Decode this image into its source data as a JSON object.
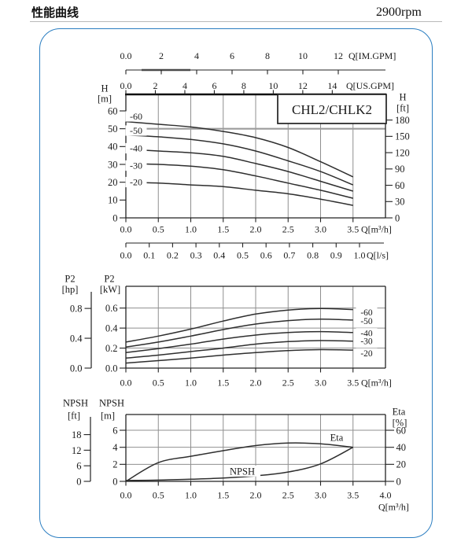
{
  "header": {
    "title": "性能曲线",
    "rpm": "2900rpm"
  },
  "colors": {
    "frame_blue": "#2b7ec1",
    "axis": "#222222",
    "grid": "#8f8f8f",
    "curve": "#2e2e2e",
    "ref_line": "#9b9b9b"
  },
  "chart_data": [
    {
      "name": "head-flow-chart",
      "type": "line",
      "title": "CHL2/CHLK2",
      "x": [
        0,
        0.5,
        1.0,
        1.5,
        2.0,
        2.5,
        3.0,
        3.5
      ],
      "x_axis": {
        "label": "Q[m³/h]",
        "ticks": [
          "0.0",
          "0.5",
          "1.0",
          "1.5",
          "2.0",
          "2.5",
          "3.0",
          "3.5"
        ]
      },
      "aux_axes": {
        "im_gpm": {
          "label": "Q[IM.GPM]",
          "ticks": [
            "0.0",
            "2",
            "4",
            "6",
            "8",
            "10",
            "12"
          ]
        },
        "us_gpm": {
          "label": "Q[US.GPM]",
          "ticks": [
            "0.0",
            "2",
            "4",
            "6",
            "8",
            "10",
            "12",
            "14"
          ]
        },
        "l_s": {
          "label": "Q[l/s]",
          "ticks": [
            "0.0",
            "0.1",
            "0.2",
            "0.3",
            "0.4",
            "0.5",
            "0.6",
            "0.7",
            "0.8",
            "0.9",
            "1.0"
          ]
        }
      },
      "y_left": {
        "label_top": "H",
        "label_unit": "[m]",
        "ticks": [
          "60",
          "50",
          "40",
          "30",
          "20",
          "10",
          "0"
        ],
        "range": [
          0,
          69
        ]
      },
      "y_right": {
        "label_top": "H",
        "label_unit": "[ft]",
        "ticks": [
          "180",
          "150",
          "120",
          "90",
          "60",
          "30",
          "0"
        ]
      },
      "ref_line_m": 50,
      "series": [
        {
          "name": "-60",
          "values": [
            54,
            52.5,
            51,
            48.5,
            45,
            39.5,
            31.5,
            23
          ]
        },
        {
          "name": "-50",
          "values": [
            46.5,
            45.5,
            44,
            41.5,
            37.5,
            32,
            26,
            18.5
          ]
        },
        {
          "name": "-40",
          "values": [
            38.5,
            37.5,
            36.5,
            34.5,
            30.5,
            26,
            20.5,
            15
          ]
        },
        {
          "name": "-30",
          "values": [
            30.5,
            30,
            29,
            27,
            23.5,
            19.5,
            15.5,
            11
          ]
        },
        {
          "name": "-20",
          "values": [
            20,
            19.5,
            18.5,
            17.5,
            15.5,
            13.5,
            10.5,
            7
          ]
        }
      ]
    },
    {
      "name": "power-flow-chart",
      "type": "line",
      "x": [
        0,
        0.5,
        1.0,
        1.5,
        2.0,
        2.5,
        3.0,
        3.5
      ],
      "x_axis": {
        "label": "Q[m³/h]",
        "ticks": [
          "0.0",
          "0.5",
          "1.0",
          "1.5",
          "2.0",
          "2.5",
          "3.0",
          "3.5"
        ]
      },
      "y_hp": {
        "label_top": "P2",
        "label_unit": "[hp]",
        "ticks": [
          "0.8",
          "0.4",
          "0.0"
        ]
      },
      "y_kw": {
        "label_top": "P2",
        "label_unit": "[kW]",
        "ticks": [
          "0.6",
          "0.4",
          "0.2",
          "0.0"
        ],
        "range": [
          0,
          0.8
        ]
      },
      "series": [
        {
          "name": "-60",
          "values": [
            0.26,
            0.32,
            0.39,
            0.47,
            0.54,
            0.58,
            0.595,
            0.585
          ]
        },
        {
          "name": "-50",
          "values": [
            0.21,
            0.26,
            0.32,
            0.385,
            0.44,
            0.475,
            0.49,
            0.48
          ]
        },
        {
          "name": "-40",
          "values": [
            0.155,
            0.195,
            0.24,
            0.29,
            0.33,
            0.355,
            0.365,
            0.355
          ]
        },
        {
          "name": "-30",
          "values": [
            0.1,
            0.13,
            0.165,
            0.2,
            0.24,
            0.265,
            0.275,
            0.27
          ]
        },
        {
          "name": "-20",
          "values": [
            0.05,
            0.075,
            0.1,
            0.13,
            0.155,
            0.175,
            0.185,
            0.18
          ]
        }
      ]
    },
    {
      "name": "npsh-eta-chart",
      "type": "line",
      "x": [
        0,
        0.5,
        1.0,
        1.5,
        2.0,
        2.5,
        3.0,
        3.5
      ],
      "x_axis": {
        "label": "Q[m³/h]",
        "ticks": [
          "0.0",
          "0.5",
          "1.0",
          "1.5",
          "2.0",
          "2.5",
          "3.0",
          "3.5",
          "4.0"
        ]
      },
      "y_ft": {
        "label_top": "NPSH",
        "label_unit": "[ft]",
        "ticks": [
          "18",
          "12",
          "6",
          "0"
        ]
      },
      "y_m": {
        "label_top": "NPSH",
        "label_unit": "[m]",
        "ticks": [
          "6",
          "4",
          "2",
          "0"
        ],
        "range": [
          0,
          7.85
        ]
      },
      "y_eta": {
        "label_top": "Eta",
        "label_unit": "[%]",
        "ticks": [
          "60",
          "40",
          "20",
          "0"
        ]
      },
      "annotations": {
        "eta": "Eta",
        "npsh": "NPSH"
      },
      "series": [
        {
          "name": "Eta",
          "unit": "%",
          "values": [
            0,
            22,
            29.5,
            36,
            42,
            45,
            44,
            40
          ]
        },
        {
          "name": "NPSH",
          "unit": "m",
          "values": [
            0.1,
            0.15,
            0.25,
            0.4,
            0.65,
            1.1,
            2.05,
            4.0
          ]
        }
      ]
    }
  ]
}
